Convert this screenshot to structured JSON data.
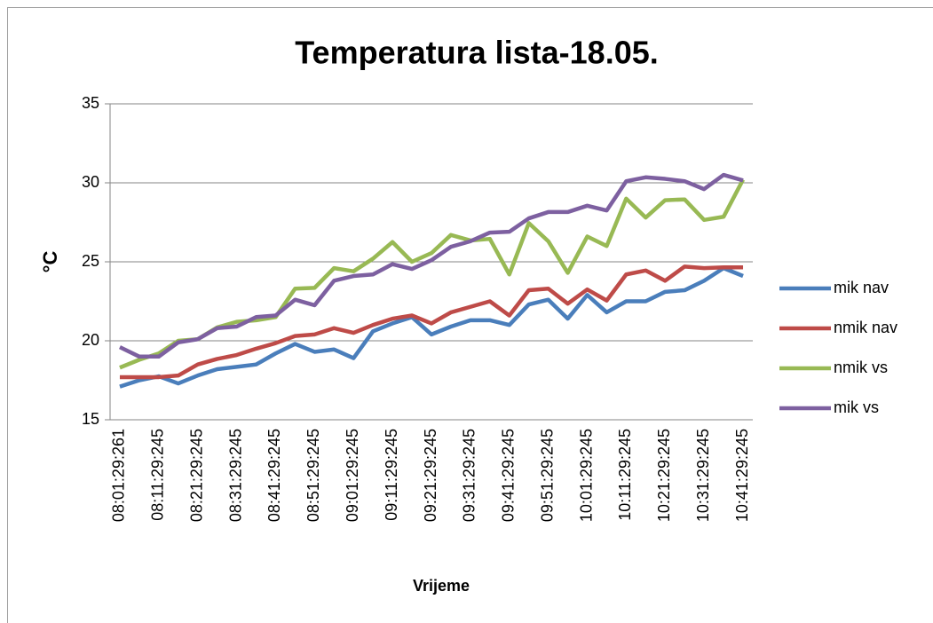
{
  "chart_data": {
    "type": "line",
    "title": "Temperatura lista-18.05.",
    "x_label": "Vrijeme",
    "y_label": "°C",
    "categories": [
      "08:01:29:261",
      null,
      "08:11:29:245",
      null,
      "08:21:29:245",
      null,
      "08:31:29:245",
      null,
      "08:41:29:245",
      null,
      "08:51:29:245",
      null,
      "09:01:29:245",
      null,
      "09:11:29:245",
      null,
      "09:21:29:245",
      null,
      "09:31:29:245",
      null,
      "09:41:29:245",
      null,
      "09:51:29:245",
      null,
      "10:01:29:245",
      null,
      "10:11:29:245",
      null,
      "10:21:29:245",
      null,
      "10:31:29:245",
      null,
      "10:41:29:245"
    ],
    "series": [
      {
        "name": "mik nav",
        "color": "#4a7ebb",
        "values": [
          17.1,
          17.5,
          17.75,
          17.3,
          17.8,
          18.2,
          18.35,
          18.5,
          19.2,
          19.8,
          19.3,
          19.45,
          18.9,
          20.6,
          21.1,
          21.5,
          20.4,
          20.9,
          21.3,
          21.3,
          21.0,
          22.3,
          22.6,
          21.4,
          22.9,
          21.8,
          22.5,
          22.5,
          23.1,
          23.2,
          23.8,
          24.6,
          24.1
        ]
      },
      {
        "name": "nmik nav",
        "color": "#be4b48",
        "values": [
          17.7,
          17.7,
          17.7,
          17.8,
          18.5,
          18.85,
          19.1,
          19.5,
          19.85,
          20.3,
          20.4,
          20.8,
          20.5,
          21.0,
          21.4,
          21.6,
          21.1,
          21.8,
          22.15,
          22.5,
          21.6,
          23.2,
          23.3,
          22.35,
          23.25,
          22.55,
          24.2,
          24.45,
          23.8,
          24.7,
          24.6,
          24.65,
          24.65
        ]
      },
      {
        "name": "nmik vs",
        "color": "#98b954",
        "values": [
          18.3,
          18.8,
          19.2,
          20.0,
          20.1,
          20.85,
          21.2,
          21.3,
          21.5,
          23.3,
          23.35,
          24.6,
          24.4,
          25.2,
          26.25,
          25.0,
          25.55,
          26.7,
          26.35,
          26.45,
          24.2,
          27.45,
          26.3,
          24.3,
          26.6,
          26.0,
          29.0,
          27.8,
          28.9,
          28.95,
          27.65,
          27.85,
          30.2
        ]
      },
      {
        "name": "mik vs",
        "color": "#7d60a0",
        "values": [
          19.6,
          19.0,
          19.0,
          19.9,
          20.1,
          20.8,
          20.9,
          21.5,
          21.6,
          22.6,
          22.25,
          23.8,
          24.1,
          24.2,
          24.85,
          24.55,
          25.1,
          25.95,
          26.3,
          26.85,
          26.9,
          27.75,
          28.15,
          28.15,
          28.55,
          28.25,
          30.1,
          30.35,
          30.25,
          30.1,
          29.6,
          30.5,
          30.15
        ]
      }
    ],
    "ylim": [
      15,
      35
    ],
    "yticks": [
      15,
      20,
      25,
      30,
      35
    ],
    "grid": true,
    "legend": "right"
  }
}
